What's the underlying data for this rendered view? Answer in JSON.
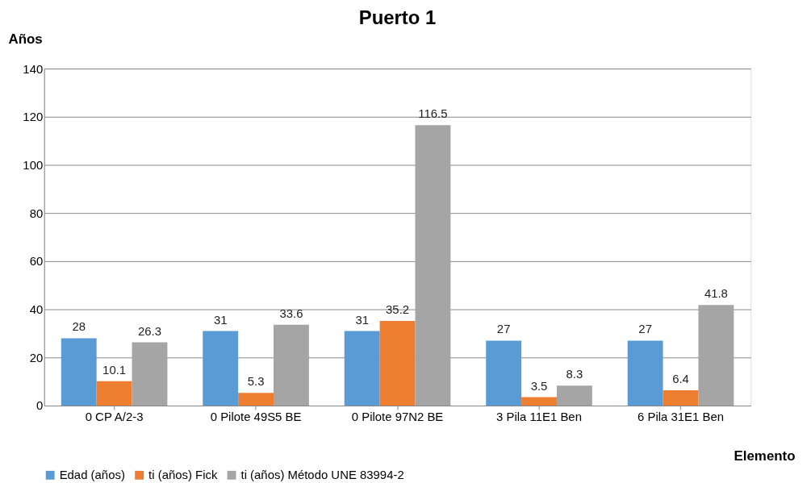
{
  "chart_data": {
    "type": "bar",
    "title": "Puerto 1",
    "ylabel": "Años",
    "xlabel": "Elemento",
    "categories": [
      "0 CP A/2-3",
      "0 Pilote 49S5 BE",
      "0 Pilote 97N2 BE",
      "3 Pila 11E1 Ben",
      "6 Pila 31E1 Ben"
    ],
    "series": [
      {
        "name": "Edad (años)",
        "color": "#5b9bd5",
        "values": [
          28,
          31,
          31,
          27,
          27
        ]
      },
      {
        "name": "ti (años) Fick",
        "color": "#ed7d31",
        "values": [
          10.1,
          5.3,
          35.2,
          3.5,
          6.4
        ]
      },
      {
        "name": "ti (años) Método UNE 83994-2",
        "color": "#a5a5a5",
        "values": [
          26.3,
          33.6,
          116.5,
          8.3,
          41.8
        ]
      }
    ],
    "ylim": [
      0,
      140
    ],
    "yticks": [
      0,
      20,
      40,
      60,
      80,
      100,
      120,
      140
    ],
    "grid": "y",
    "legend": "bottom",
    "data_labels": true
  }
}
